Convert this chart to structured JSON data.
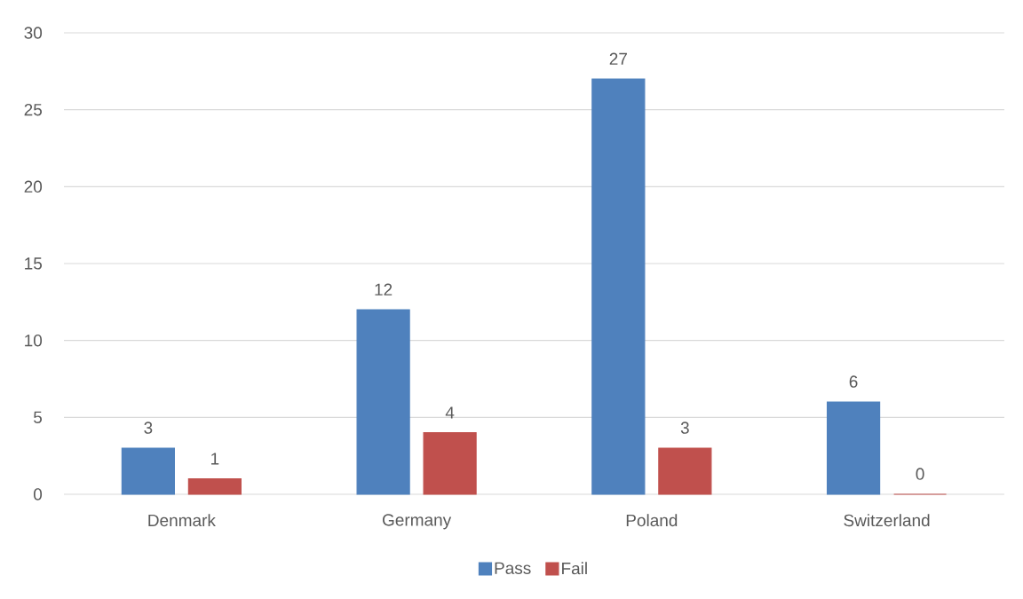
{
  "chart_data": {
    "type": "bar",
    "categories": [
      "Denmark",
      "Germany",
      "Poland",
      "Switzerland"
    ],
    "series": [
      {
        "name": "Pass",
        "color": "#4f81bd",
        "values": [
          3,
          12,
          27,
          6
        ]
      },
      {
        "name": "Fail",
        "color": "#c0504d",
        "values": [
          1,
          4,
          3,
          0
        ]
      }
    ],
    "ylim": [
      0,
      30
    ],
    "yticks": [
      0,
      5,
      10,
      15,
      20,
      25,
      30
    ],
    "grid": "y",
    "legend": "bottom",
    "data_labels": true
  }
}
